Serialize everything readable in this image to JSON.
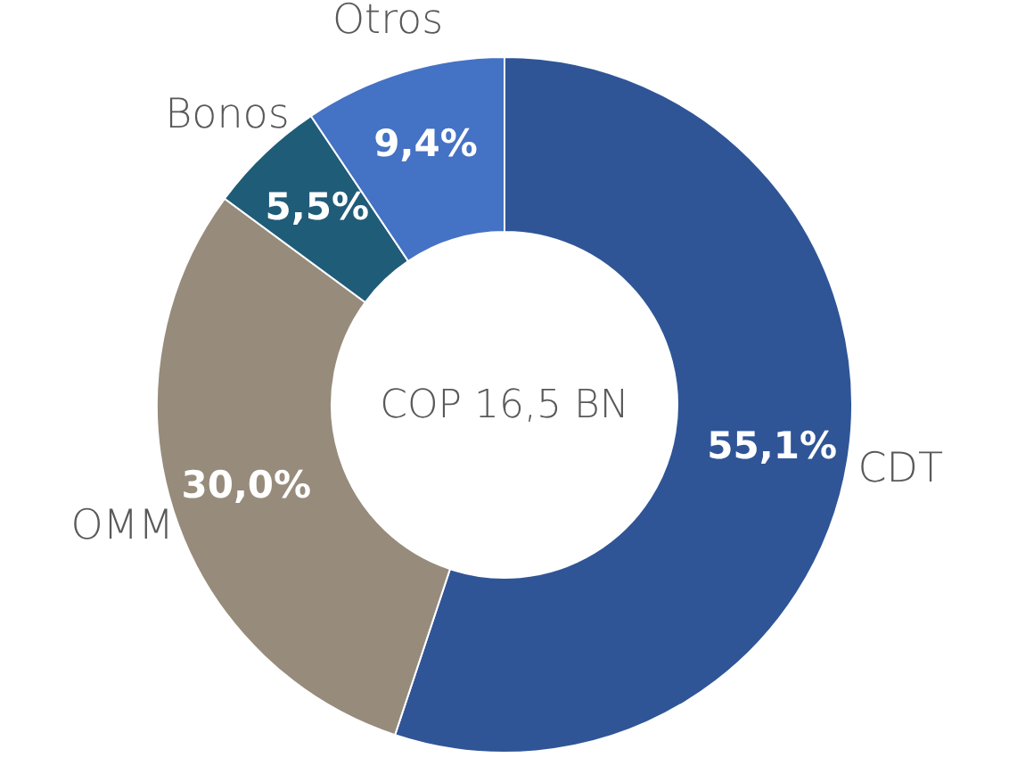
{
  "chart_data": {
    "type": "donut",
    "categories": [
      "CDT",
      "OMM",
      "Bonos",
      "Otros"
    ],
    "values": [
      55.1,
      30.0,
      5.5,
      9.4
    ],
    "colors": [
      "#2f5597",
      "#978b7b",
      "#1f5c78",
      "#4472c4"
    ],
    "value_labels": [
      "55,1%",
      "30,0%",
      "5,5%",
      "9,4%"
    ],
    "annotations": [
      "COP 16,5 BN"
    ]
  }
}
